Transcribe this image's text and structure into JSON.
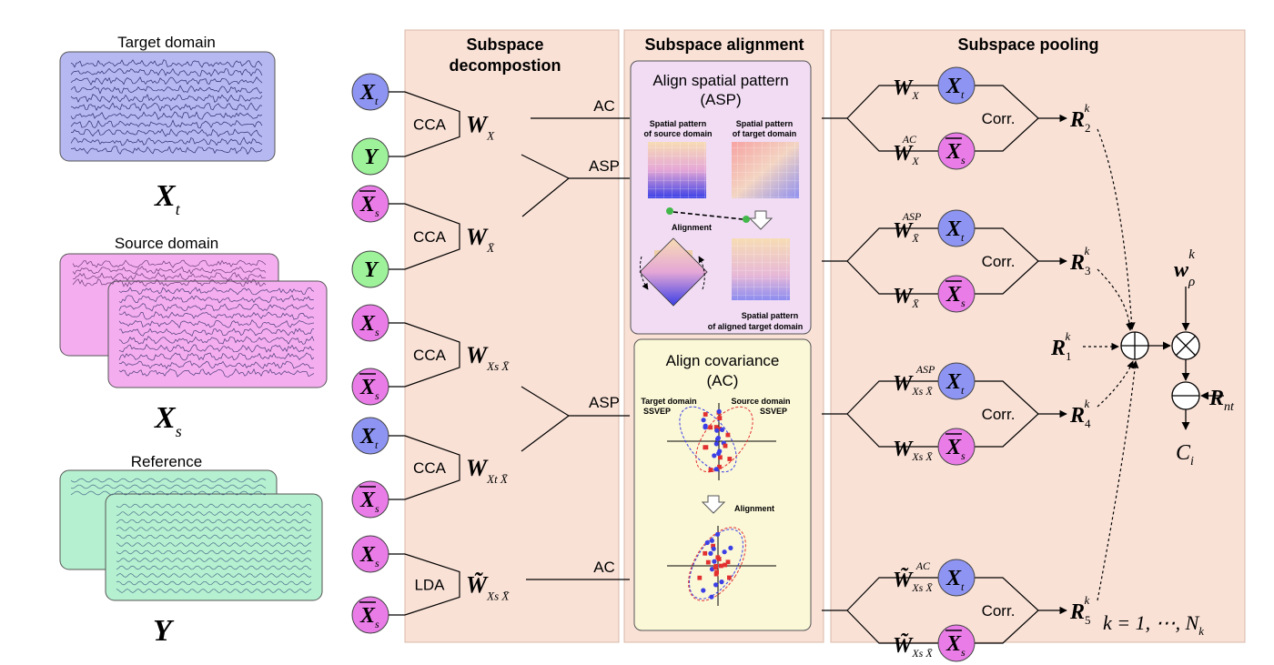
{
  "colors": {
    "panel_bg": "#f9e1d6",
    "panel_border": "#d8b8a8",
    "target_circle": "#8e94f2",
    "source_circle": "#ea7ce8",
    "ref_circle": "#9df29a",
    "target_box": "#b6b8f1",
    "source_box": "#f4aef0",
    "ref_box": "#b5f0d0",
    "asp_box": "#f1dcf4",
    "ac_box": "#fbf8d8"
  },
  "left": {
    "target_title": "Target domain",
    "target_symbol": "X",
    "target_sub": "t",
    "source_title": "Source domain",
    "source_symbol": "X",
    "source_sub": "s",
    "reference_title": "Reference",
    "reference_symbol": "Y"
  },
  "panels": {
    "decomposition_title_line1": "Subspace",
    "decomposition_title_line2": "decompostion",
    "alignment_title": "Subspace alignment",
    "pooling_title": "Subspace pooling"
  },
  "inputs": [
    {
      "sym": "X",
      "sub": "t",
      "bar": false,
      "kind": "target"
    },
    {
      "sym": "Y",
      "sub": "",
      "bar": false,
      "kind": "ref"
    },
    {
      "sym": "X",
      "sub": "s",
      "bar": true,
      "kind": "source"
    },
    {
      "sym": "Y",
      "sub": "",
      "bar": false,
      "kind": "ref"
    },
    {
      "sym": "X",
      "sub": "s",
      "bar": false,
      "kind": "source"
    },
    {
      "sym": "X",
      "sub": "s",
      "bar": true,
      "kind": "source"
    },
    {
      "sym": "X",
      "sub": "t",
      "bar": false,
      "kind": "target"
    },
    {
      "sym": "X",
      "sub": "s",
      "bar": true,
      "kind": "source"
    },
    {
      "sym": "X",
      "sub": "s",
      "bar": false,
      "kind": "source"
    },
    {
      "sym": "X",
      "sub": "s",
      "bar": true,
      "kind": "source"
    }
  ],
  "methods": [
    "CCA",
    "CCA",
    "CCA",
    "CCA",
    "LDA"
  ],
  "outputs": [
    {
      "sym": "W",
      "sub": "X"
    },
    {
      "sym": "W",
      "sub": "X̄"
    },
    {
      "sym": "W",
      "sub": "Xs X̄"
    },
    {
      "sym": "W",
      "sub": "Xt X̄"
    },
    {
      "sym": "W̃",
      "sub": "Xs X̄"
    }
  ],
  "connections": [
    "AC",
    "ASP",
    "ASP",
    "AC"
  ],
  "asp": {
    "title_line1": "Align spatial pattern",
    "title_line2": "(ASP)",
    "label_source_1": "Spatial pattern",
    "label_source_2": "of source domain",
    "label_target_1": "Spatial pattern",
    "label_target_2": "of target domain",
    "alignment": "Alignment",
    "label_aligned_1": "Spatial pattern",
    "label_aligned_2": "of aligned target domain"
  },
  "ac": {
    "title_line1": "Align covariance",
    "title_line2": "(AC)",
    "label_target_1": "Target domain",
    "label_target_2": "SSVEP",
    "label_source_1": "Source domain",
    "label_source_2": "SSVEP",
    "alignment": "Alignment"
  },
  "pooling": {
    "corr": "Corr.",
    "weights": [
      {
        "w": "W",
        "sub": "X",
        "sup": ""
      },
      {
        "w": "W",
        "sub": "X",
        "sup": "AC"
      },
      {
        "w": "W",
        "sub": "X̄",
        "sup": "ASP"
      },
      {
        "w": "W",
        "sub": "X̄",
        "sup": ""
      },
      {
        "w": "W",
        "sub": "Xs X̄",
        "sup": "ASP"
      },
      {
        "w": "W",
        "sub": "Xs X̄",
        "sup": ""
      },
      {
        "w": "W̃",
        "sub": "Xs X̄",
        "sup": "AC"
      },
      {
        "w": "W̃",
        "sub": "Xs X̄",
        "sup": ""
      }
    ],
    "results": [
      {
        "sym": "R",
        "sub": "2",
        "sup": "k"
      },
      {
        "sym": "R",
        "sub": "3",
        "sup": "k"
      },
      {
        "sym": "R",
        "sub": "4",
        "sup": "k"
      },
      {
        "sym": "R",
        "sub": "5",
        "sup": "k"
      }
    ],
    "r1": {
      "sym": "R",
      "sub": "1",
      "sup": "k"
    },
    "weight_rho": {
      "sym": "w",
      "sub": "ρ",
      "sup": "k"
    },
    "r_nt": {
      "sym": "R",
      "sub": "nt"
    },
    "output": {
      "sym": "C",
      "sub": "i"
    },
    "k_range": "k = 1, ⋯, N",
    "k_range_sub": "k"
  }
}
